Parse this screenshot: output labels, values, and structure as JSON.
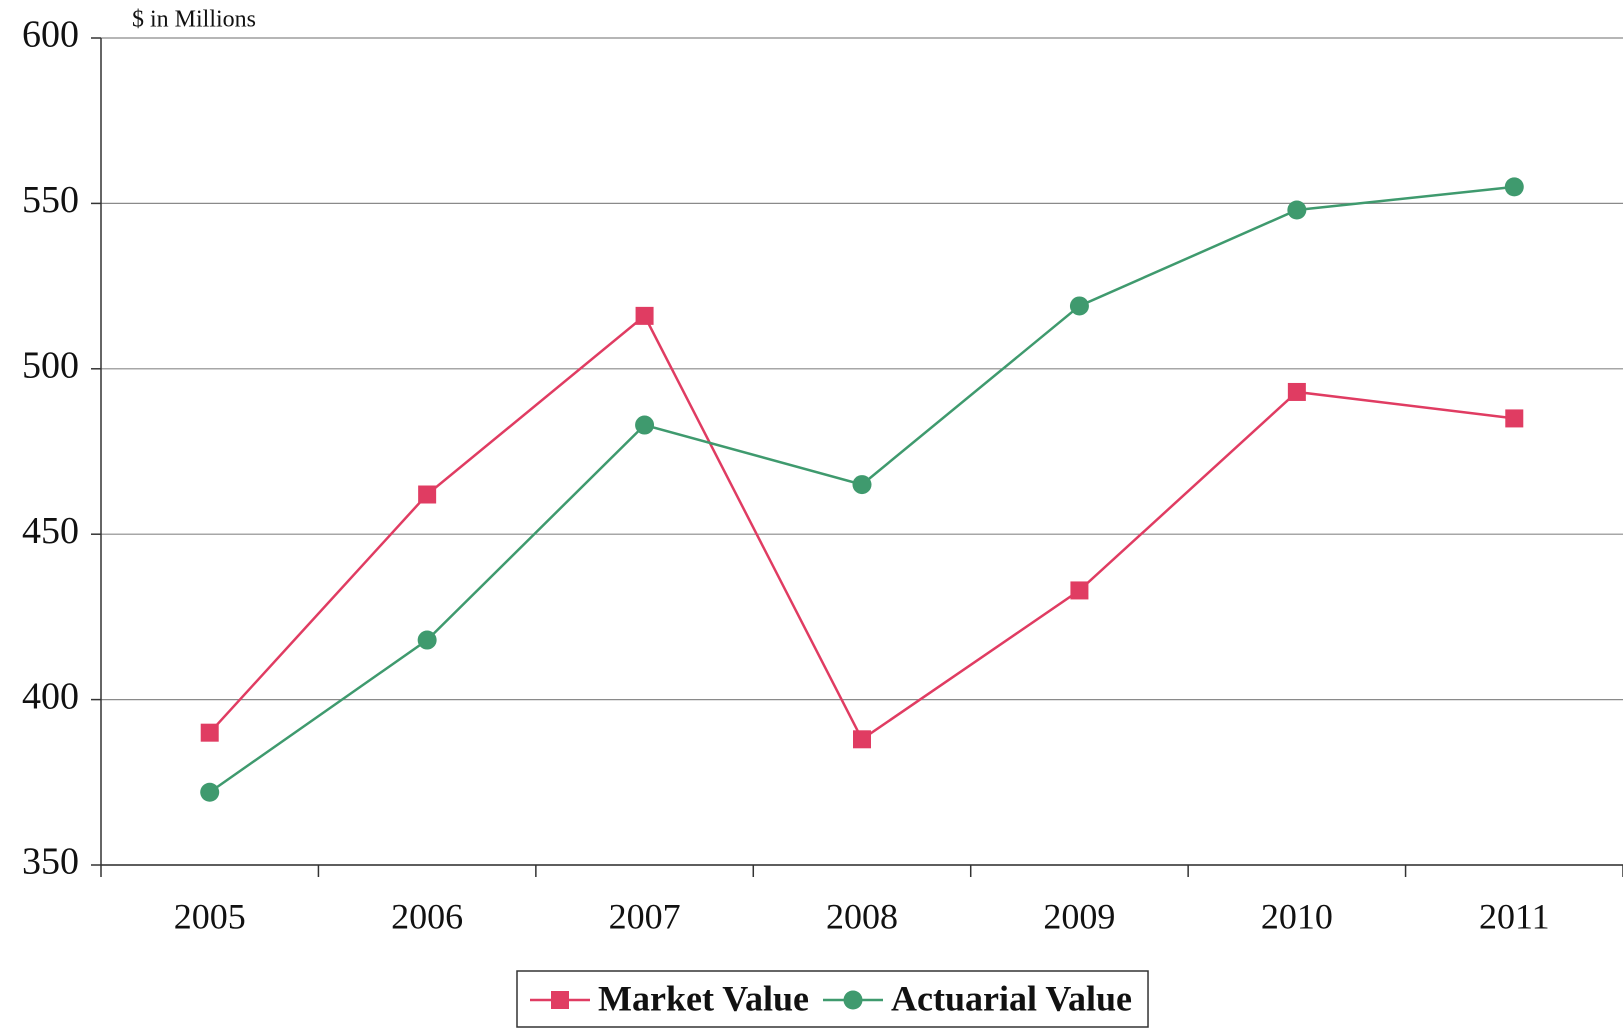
{
  "chart_data": {
    "type": "line",
    "y_axis_label": "$ in Millions",
    "categories": [
      "2005",
      "2006",
      "2007",
      "2008",
      "2009",
      "2010",
      "2011"
    ],
    "series": [
      {
        "name": "Market Value",
        "color": "#e03c62",
        "marker": "square",
        "values": [
          390,
          462,
          516,
          388,
          433,
          493,
          485
        ]
      },
      {
        "name": "Actuarial Value",
        "color": "#3f9a6e",
        "marker": "circle",
        "values": [
          372,
          418,
          483,
          465,
          519,
          548,
          555
        ]
      }
    ],
    "ylim": [
      350,
      600
    ],
    "yticks": [
      350,
      400,
      450,
      500,
      550,
      600
    ],
    "grid": true,
    "legend": "bottom"
  }
}
